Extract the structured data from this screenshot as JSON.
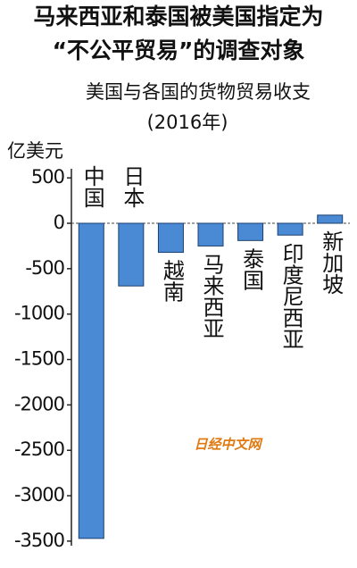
{
  "chart_data": {
    "type": "bar",
    "title": [
      "马来西亚和泰国被美国指定为",
      "“不公平贸易”的调查对象"
    ],
    "subtitle": [
      "美国与各国的货物贸易收支",
      "(2016年)"
    ],
    "y_label": "亿美元",
    "watermark": "日经中文网",
    "categories": [
      "中国",
      "日本",
      "越南",
      "马来西亚",
      "泰国",
      "印度尼西亚",
      "新加坡"
    ],
    "values": [
      -3470,
      -690,
      -320,
      -250,
      -190,
      -130,
      90
    ],
    "color": "#4a8ad4",
    "ylim": [
      -3550,
      600
    ],
    "yticks": [
      500,
      0,
      -500,
      -1000,
      -1500,
      -2000,
      -2500,
      -3000,
      -3500
    ]
  }
}
